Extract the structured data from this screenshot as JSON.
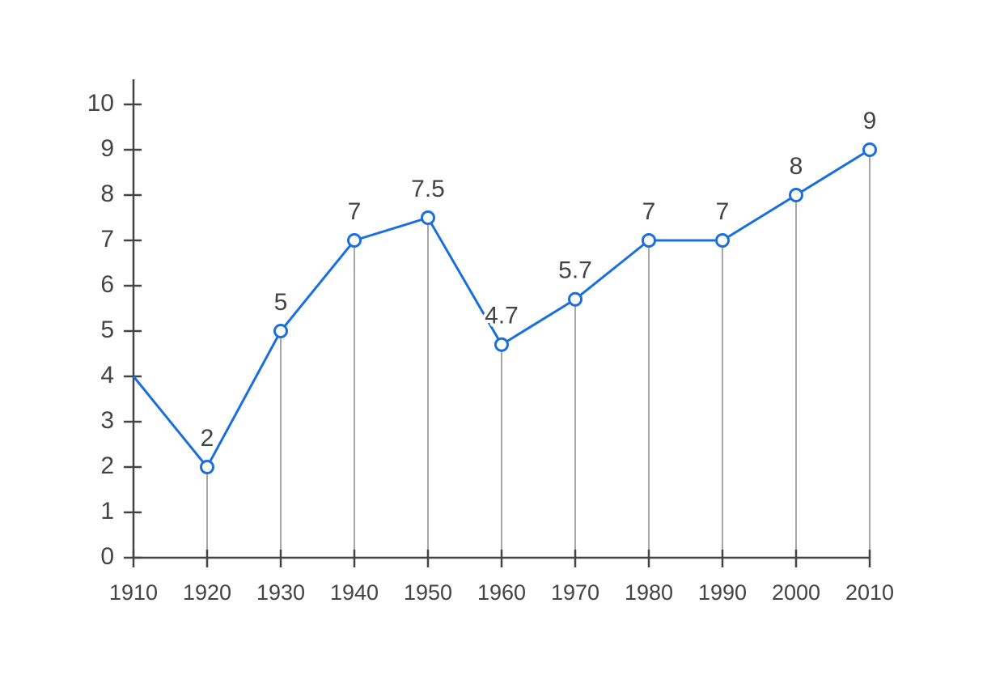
{
  "chart_data": {
    "type": "line",
    "x": [
      1910,
      1920,
      1930,
      1940,
      1950,
      1960,
      1970,
      1980,
      1990,
      2000,
      2010
    ],
    "series": [
      {
        "color": "#1a6fdc",
        "values": [
          4,
          2,
          5,
          7,
          7.5,
          4.7,
          5.7,
          7,
          7,
          8,
          9
        ],
        "value_labels": [
          null,
          "2",
          "5",
          "7",
          "7.5",
          "4.7",
          "5.7",
          "7",
          "7",
          "8",
          "9"
        ]
      }
    ],
    "xlim": [
      1910,
      2010
    ],
    "xticks": [
      1910,
      1920,
      1930,
      1940,
      1950,
      1960,
      1970,
      1980,
      1990,
      2000,
      2010
    ],
    "ylim": [
      0,
      10
    ],
    "yticks": [
      0,
      1,
      2,
      3,
      4,
      5,
      6,
      7,
      8,
      9,
      10
    ],
    "drop_lines": true
  }
}
